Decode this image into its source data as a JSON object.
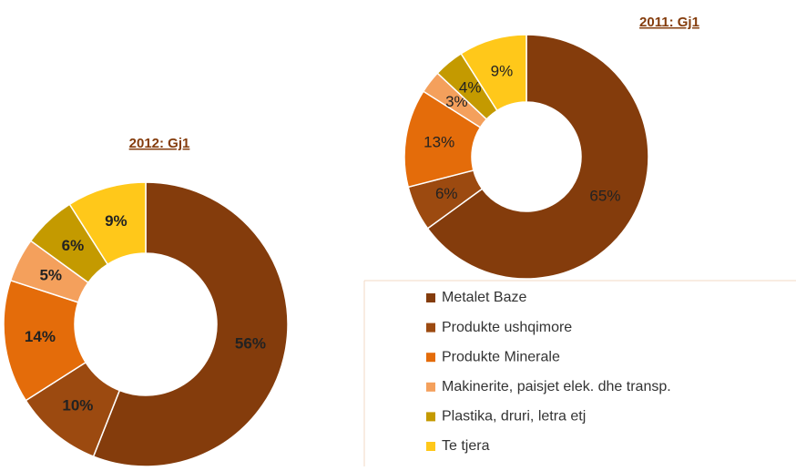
{
  "chart_data": [
    {
      "type": "donut",
      "title": "2012: Gj1",
      "values": [
        56,
        10,
        14,
        5,
        6,
        9
      ],
      "value_labels": [
        "56%",
        "10%",
        "14%",
        "5%",
        "6%",
        "9%"
      ],
      "colors": [
        "#843c0c",
        "#9c4a10",
        "#e46c0a",
        "#f4a05c",
        "#c49a00",
        "#ffc81a"
      ]
    },
    {
      "type": "donut",
      "title": "2011: Gj1",
      "categories": [
        "Metalet Baze",
        "Produkte ushqimore",
        "Produkte Minerale",
        "Makinerite, paisjet elek. dhe transp.",
        "Plastika, druri, letra etj",
        "Te tjera"
      ],
      "values": [
        65,
        6,
        13,
        3,
        4,
        9
      ],
      "value_labels": [
        "65%",
        "6%",
        "13%",
        "3%",
        "4%",
        "9%"
      ],
      "colors": [
        "#843c0c",
        "#9c4a10",
        "#e46c0a",
        "#f4a05c",
        "#c49a00",
        "#ffc81a"
      ]
    }
  ]
}
